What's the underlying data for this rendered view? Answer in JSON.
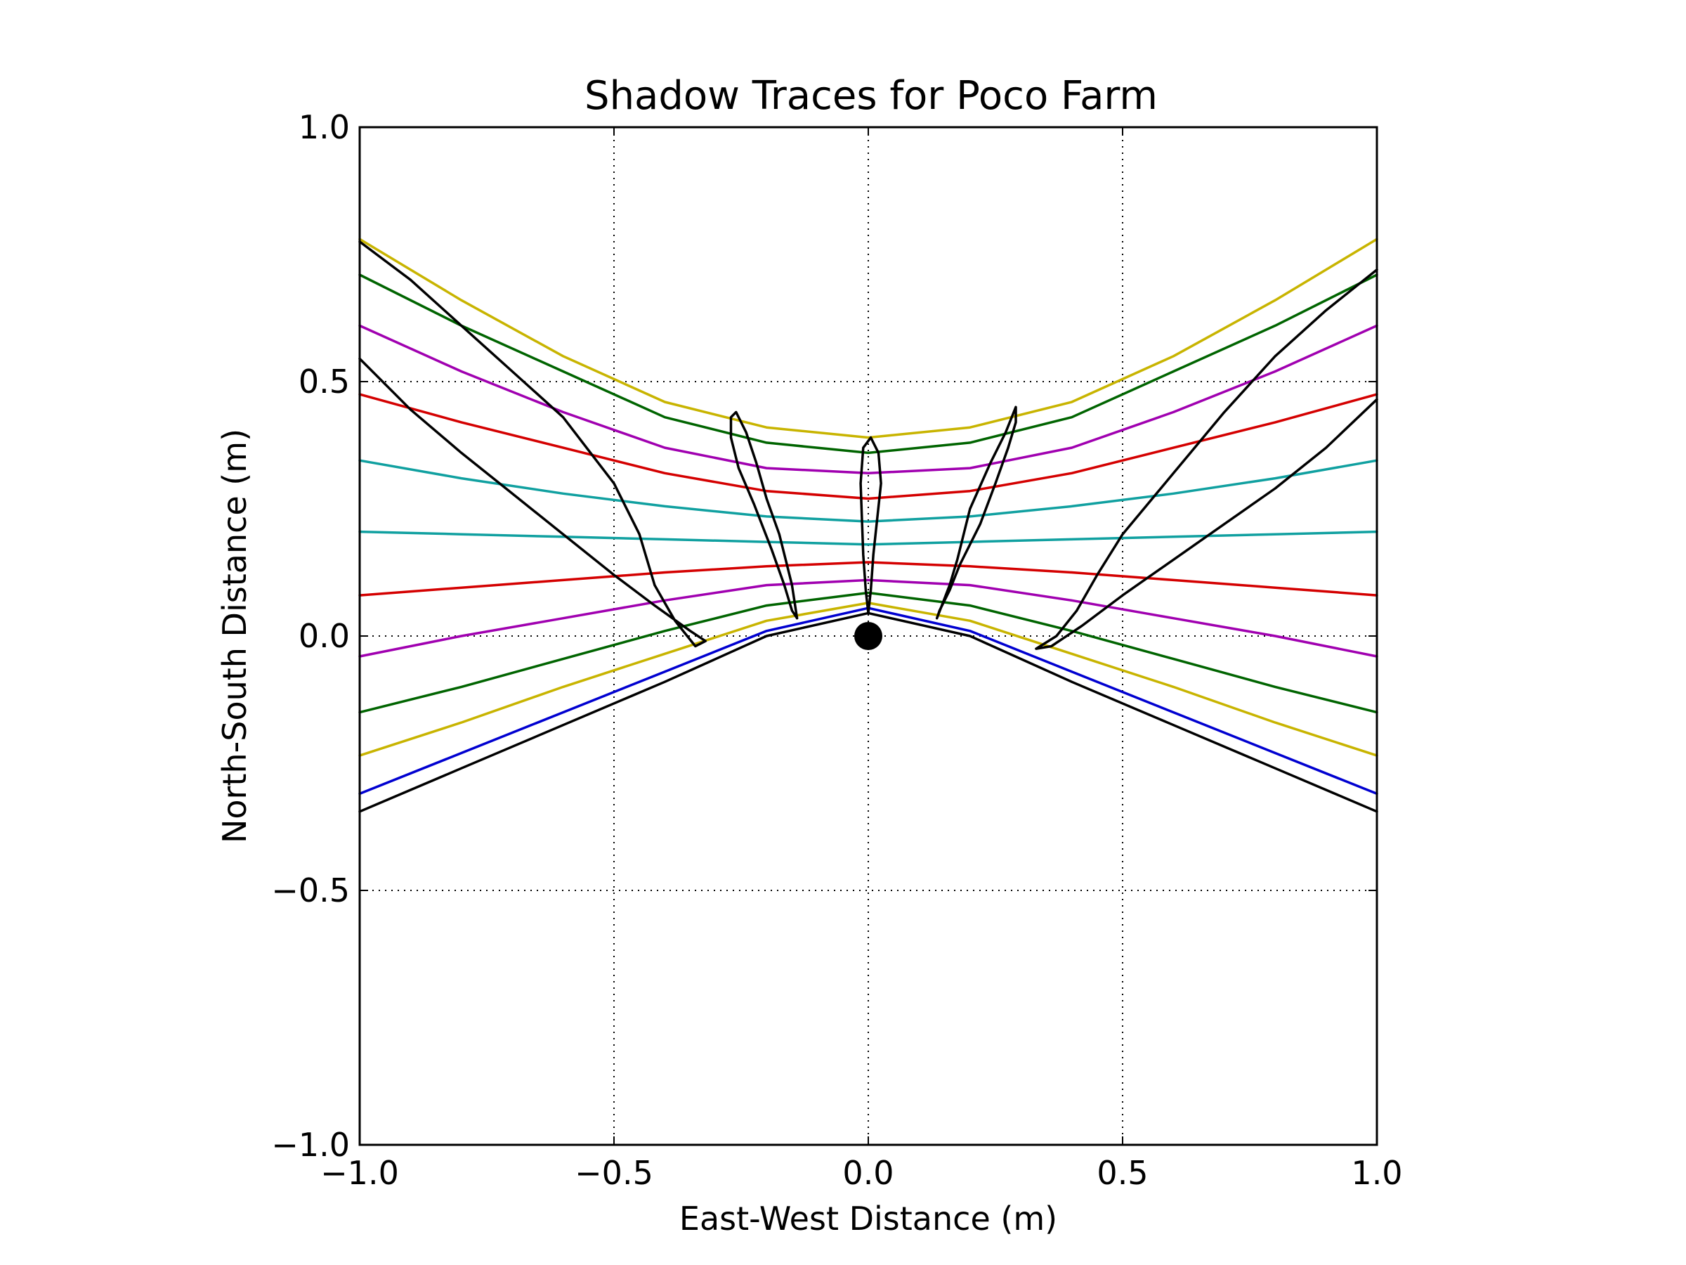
{
  "chart_data": {
    "type": "line",
    "title": "Shadow Traces for Poco Farm",
    "xlabel": "East-West Distance (m)",
    "ylabel": "North-South Distance (m)",
    "xlim": [
      -1.0,
      1.0
    ],
    "ylim": [
      -1.0,
      1.0
    ],
    "xticks": [
      -1.0,
      -0.5,
      0.0,
      0.5,
      1.0
    ],
    "yticks": [
      -1.0,
      -0.5,
      0.0,
      0.5,
      1.0
    ],
    "xtick_labels": [
      "−1.0",
      "−0.5",
      "0.0",
      "0.5",
      "1.0"
    ],
    "ytick_labels": [
      "−1.0",
      "−0.5",
      "0.0",
      "0.5",
      "1.0"
    ],
    "grid": true,
    "gnomon": {
      "x": 0.0,
      "y": 0.0,
      "color": "#000000"
    },
    "series": [
      {
        "color": "#c8b400",
        "points": [
          [
            -1.0,
            0.78
          ],
          [
            -0.8,
            0.66
          ],
          [
            -0.6,
            0.55
          ],
          [
            -0.4,
            0.46
          ],
          [
            -0.2,
            0.41
          ],
          [
            0.0,
            0.39
          ],
          [
            0.2,
            0.41
          ],
          [
            0.4,
            0.46
          ],
          [
            0.6,
            0.55
          ],
          [
            0.8,
            0.66
          ],
          [
            1.0,
            0.78
          ]
        ]
      },
      {
        "color": "#006400",
        "points": [
          [
            -1.0,
            0.71
          ],
          [
            -0.8,
            0.61
          ],
          [
            -0.6,
            0.52
          ],
          [
            -0.4,
            0.43
          ],
          [
            -0.2,
            0.38
          ],
          [
            0.0,
            0.36
          ],
          [
            0.2,
            0.38
          ],
          [
            0.4,
            0.43
          ],
          [
            0.6,
            0.52
          ],
          [
            0.8,
            0.61
          ],
          [
            1.0,
            0.71
          ]
        ]
      },
      {
        "color": "#a000b0",
        "points": [
          [
            -1.0,
            0.61
          ],
          [
            -0.8,
            0.52
          ],
          [
            -0.6,
            0.44
          ],
          [
            -0.4,
            0.37
          ],
          [
            -0.2,
            0.33
          ],
          [
            0.0,
            0.32
          ],
          [
            0.2,
            0.33
          ],
          [
            0.4,
            0.37
          ],
          [
            0.6,
            0.44
          ],
          [
            0.8,
            0.52
          ],
          [
            1.0,
            0.61
          ]
        ]
      },
      {
        "color": "#d40000",
        "points": [
          [
            -1.0,
            0.475
          ],
          [
            -0.8,
            0.42
          ],
          [
            -0.6,
            0.37
          ],
          [
            -0.4,
            0.32
          ],
          [
            -0.2,
            0.285
          ],
          [
            0.0,
            0.27
          ],
          [
            0.2,
            0.285
          ],
          [
            0.4,
            0.32
          ],
          [
            0.6,
            0.37
          ],
          [
            0.8,
            0.42
          ],
          [
            1.0,
            0.475
          ]
        ]
      },
      {
        "color": "#10a0a0",
        "points": [
          [
            -1.0,
            0.345
          ],
          [
            -0.8,
            0.31
          ],
          [
            -0.6,
            0.28
          ],
          [
            -0.4,
            0.255
          ],
          [
            -0.2,
            0.235
          ],
          [
            0.0,
            0.225
          ],
          [
            0.2,
            0.235
          ],
          [
            0.4,
            0.255
          ],
          [
            0.6,
            0.28
          ],
          [
            0.8,
            0.31
          ],
          [
            1.0,
            0.345
          ]
        ]
      },
      {
        "color": "#10a0a0",
        "points": [
          [
            -1.0,
            0.205
          ],
          [
            -0.8,
            0.2
          ],
          [
            -0.6,
            0.195
          ],
          [
            -0.4,
            0.19
          ],
          [
            -0.2,
            0.185
          ],
          [
            0.0,
            0.18
          ],
          [
            0.2,
            0.185
          ],
          [
            0.4,
            0.19
          ],
          [
            0.6,
            0.195
          ],
          [
            0.8,
            0.2
          ],
          [
            1.0,
            0.205
          ]
        ]
      },
      {
        "color": "#d40000",
        "points": [
          [
            -1.0,
            0.08
          ],
          [
            -0.8,
            0.095
          ],
          [
            -0.6,
            0.11
          ],
          [
            -0.4,
            0.125
          ],
          [
            -0.2,
            0.137
          ],
          [
            0.0,
            0.145
          ],
          [
            0.2,
            0.137
          ],
          [
            0.4,
            0.125
          ],
          [
            0.6,
            0.11
          ],
          [
            0.8,
            0.095
          ],
          [
            1.0,
            0.08
          ]
        ]
      },
      {
        "color": "#a000b0",
        "points": [
          [
            -1.0,
            -0.04
          ],
          [
            -0.8,
            0.0
          ],
          [
            -0.6,
            0.035
          ],
          [
            -0.4,
            0.07
          ],
          [
            -0.2,
            0.1
          ],
          [
            0.0,
            0.11
          ],
          [
            0.2,
            0.1
          ],
          [
            0.4,
            0.07
          ],
          [
            0.6,
            0.035
          ],
          [
            0.8,
            0.0
          ],
          [
            1.0,
            -0.04
          ]
        ]
      },
      {
        "color": "#006400",
        "points": [
          [
            -1.0,
            -0.15
          ],
          [
            -0.8,
            -0.1
          ],
          [
            -0.6,
            -0.045
          ],
          [
            -0.4,
            0.01
          ],
          [
            -0.2,
            0.06
          ],
          [
            0.0,
            0.085
          ],
          [
            0.2,
            0.06
          ],
          [
            0.4,
            0.01
          ],
          [
            0.6,
            -0.045
          ],
          [
            0.8,
            -0.1
          ],
          [
            1.0,
            -0.15
          ]
        ]
      },
      {
        "color": "#c8b400",
        "points": [
          [
            -1.0,
            -0.235
          ],
          [
            -0.8,
            -0.17
          ],
          [
            -0.6,
            -0.1
          ],
          [
            -0.4,
            -0.035
          ],
          [
            -0.2,
            0.03
          ],
          [
            0.0,
            0.065
          ],
          [
            0.2,
            0.03
          ],
          [
            0.4,
            -0.035
          ],
          [
            0.6,
            -0.1
          ],
          [
            0.8,
            -0.17
          ],
          [
            1.0,
            -0.235
          ]
        ]
      },
      {
        "color": "#0000d0",
        "points": [
          [
            -1.0,
            -0.31
          ],
          [
            -0.8,
            -0.23
          ],
          [
            -0.6,
            -0.15
          ],
          [
            -0.4,
            -0.07
          ],
          [
            -0.2,
            0.01
          ],
          [
            0.0,
            0.055
          ],
          [
            0.2,
            0.01
          ],
          [
            0.4,
            -0.07
          ],
          [
            0.6,
            -0.15
          ],
          [
            0.8,
            -0.23
          ],
          [
            1.0,
            -0.31
          ]
        ]
      },
      {
        "color": "#000000",
        "points": [
          [
            -1.0,
            -0.345
          ],
          [
            -0.8,
            -0.26
          ],
          [
            -0.6,
            -0.175
          ],
          [
            -0.4,
            -0.09
          ],
          [
            -0.2,
            0.0
          ],
          [
            0.0,
            0.045
          ],
          [
            0.2,
            0.0
          ],
          [
            0.4,
            -0.09
          ],
          [
            0.6,
            -0.175
          ],
          [
            0.8,
            -0.26
          ],
          [
            1.0,
            -0.345
          ]
        ]
      },
      {
        "color": "#000000",
        "points": [
          [
            -1.0,
            0.775
          ],
          [
            -0.9,
            0.7
          ],
          [
            -0.8,
            0.61
          ],
          [
            -0.7,
            0.52
          ],
          [
            -0.6,
            0.43
          ],
          [
            -0.5,
            0.3
          ],
          [
            -0.45,
            0.2
          ],
          [
            -0.42,
            0.1
          ],
          [
            -0.38,
            0.03
          ],
          [
            -0.34,
            -0.02
          ],
          [
            -0.32,
            -0.01
          ],
          [
            -0.35,
            0.01
          ],
          [
            -0.42,
            0.06
          ],
          [
            -0.5,
            0.12
          ],
          [
            -0.6,
            0.2
          ],
          [
            -0.7,
            0.28
          ],
          [
            -0.8,
            0.36
          ],
          [
            -0.9,
            0.445
          ],
          [
            -1.0,
            0.545
          ]
        ]
      },
      {
        "color": "#000000",
        "points": [
          [
            -0.14,
            0.035
          ],
          [
            -0.15,
            0.1
          ],
          [
            -0.16,
            0.14
          ],
          [
            -0.175,
            0.2
          ],
          [
            -0.2,
            0.27
          ],
          [
            -0.22,
            0.34
          ],
          [
            -0.24,
            0.4
          ],
          [
            -0.26,
            0.44
          ],
          [
            -0.27,
            0.43
          ],
          [
            -0.27,
            0.39
          ],
          [
            -0.255,
            0.33
          ],
          [
            -0.225,
            0.26
          ],
          [
            -0.19,
            0.17
          ],
          [
            -0.165,
            0.1
          ],
          [
            -0.15,
            0.05
          ],
          [
            -0.14,
            0.035
          ]
        ]
      },
      {
        "color": "#000000",
        "points": [
          [
            0.0,
            0.045
          ],
          [
            0.005,
            0.09
          ],
          [
            0.01,
            0.16
          ],
          [
            0.025,
            0.3
          ],
          [
            0.02,
            0.36
          ],
          [
            0.005,
            0.39
          ],
          [
            -0.01,
            0.37
          ],
          [
            -0.015,
            0.3
          ],
          [
            -0.01,
            0.16
          ],
          [
            -0.005,
            0.09
          ],
          [
            0.0,
            0.045
          ]
        ]
      },
      {
        "color": "#000000",
        "points": [
          [
            0.135,
            0.035
          ],
          [
            0.16,
            0.1
          ],
          [
            0.175,
            0.15
          ],
          [
            0.2,
            0.25
          ],
          [
            0.24,
            0.34
          ],
          [
            0.27,
            0.4
          ],
          [
            0.29,
            0.45
          ],
          [
            0.29,
            0.42
          ],
          [
            0.275,
            0.37
          ],
          [
            0.25,
            0.3
          ],
          [
            0.22,
            0.22
          ],
          [
            0.18,
            0.14
          ],
          [
            0.16,
            0.09
          ],
          [
            0.14,
            0.05
          ],
          [
            0.135,
            0.035
          ]
        ]
      },
      {
        "color": "#000000",
        "points": [
          [
            1.0,
            0.72
          ],
          [
            0.9,
            0.64
          ],
          [
            0.8,
            0.55
          ],
          [
            0.7,
            0.44
          ],
          [
            0.6,
            0.32
          ],
          [
            0.5,
            0.2
          ],
          [
            0.45,
            0.12
          ],
          [
            0.41,
            0.05
          ],
          [
            0.37,
            0.0
          ],
          [
            0.33,
            -0.025
          ],
          [
            0.36,
            -0.02
          ],
          [
            0.42,
            0.02
          ],
          [
            0.5,
            0.08
          ],
          [
            0.6,
            0.15
          ],
          [
            0.7,
            0.22
          ],
          [
            0.8,
            0.29
          ],
          [
            0.9,
            0.37
          ],
          [
            1.0,
            0.465
          ]
        ]
      }
    ]
  }
}
